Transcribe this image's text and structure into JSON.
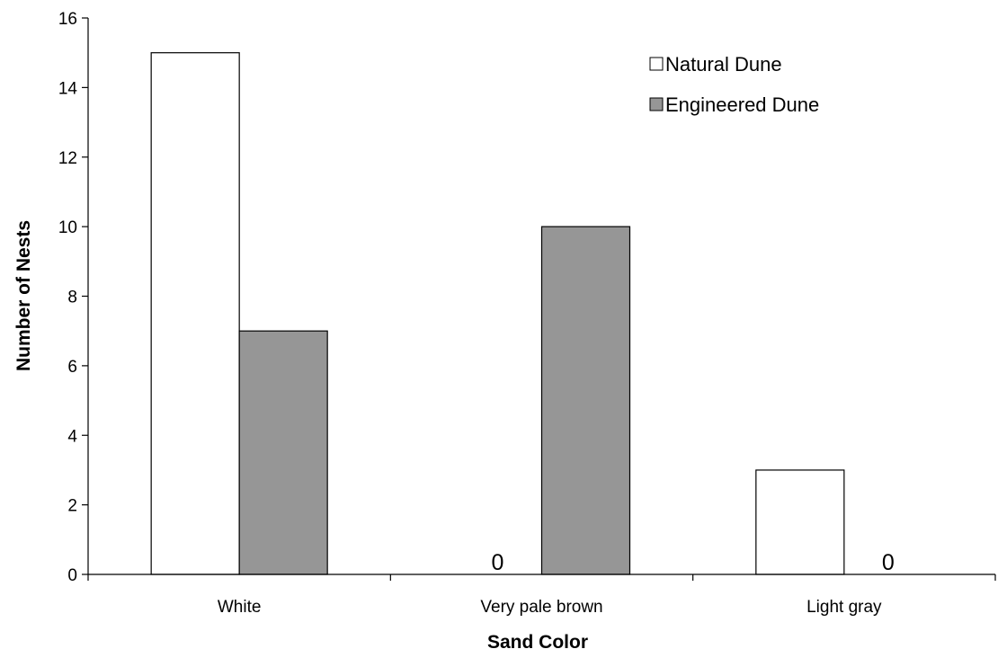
{
  "chart_data": {
    "type": "bar",
    "title": "",
    "xlabel": "Sand Color",
    "ylabel": "Number of Nests",
    "categories": [
      "White",
      "Very pale brown",
      "Light gray"
    ],
    "series": [
      {
        "name": "Natural Dune",
        "values": [
          15,
          0,
          3
        ],
        "color": "#ffffff"
      },
      {
        "name": "Engineered Dune",
        "values": [
          7,
          10,
          0
        ],
        "color": "#969696"
      }
    ],
    "ylim": [
      0,
      16
    ],
    "yticks": [
      0,
      2,
      4,
      6,
      8,
      10,
      12,
      14,
      16
    ],
    "grid": false,
    "legend_position": "top-right",
    "data_labels": [
      {
        "series": "Natural Dune",
        "category": "Very pale brown",
        "text": "0"
      },
      {
        "series": "Engineered Dune",
        "category": "Light gray",
        "text": "0"
      }
    ]
  }
}
